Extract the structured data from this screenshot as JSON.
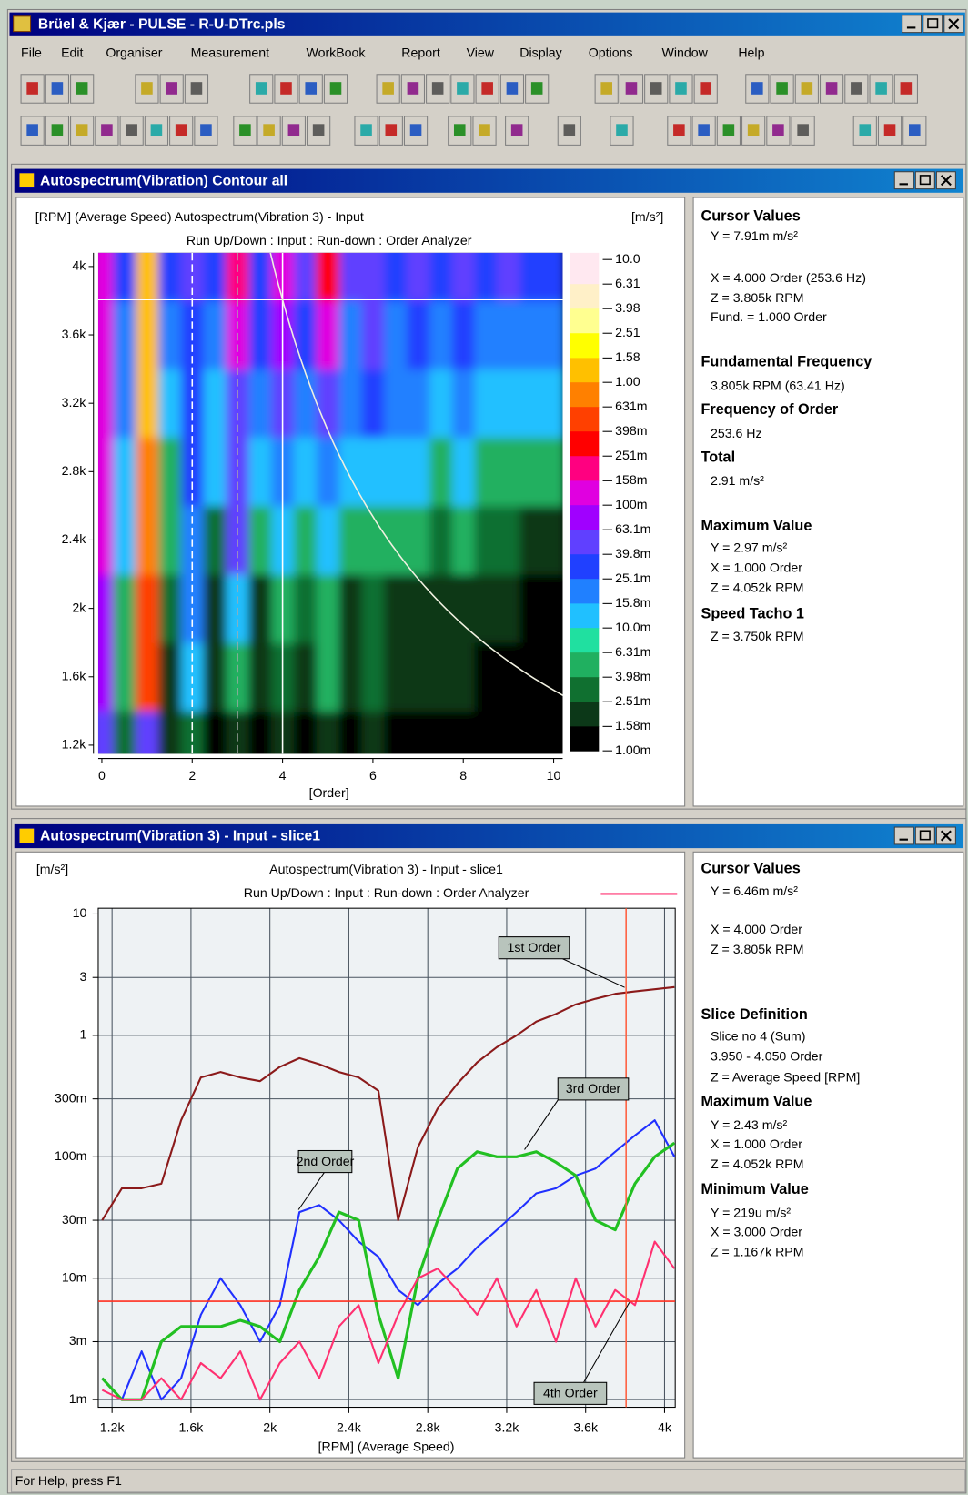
{
  "window": {
    "title": "Brüel & Kjær - PULSE - R-U-DTrc.pls",
    "menu": [
      "File",
      "Edit",
      "Organiser",
      "Measurement",
      "WorkBook",
      "Report",
      "View",
      "Display",
      "Options",
      "Window",
      "Help"
    ],
    "status": "For Help, press F1"
  },
  "windows": [
    {
      "title": "Autospectrum(Vibration) Contour all"
    },
    {
      "title": "Autospectrum(Vibration 3) - Input - slice1"
    }
  ],
  "chart_data": [
    {
      "type": "contour",
      "header": "[RPM] (Average Speed)  Autospectrum(Vibration 3) - Input",
      "unit": "[m/s²]",
      "subtitle": "Run Up/Down : Input : Run-down : Order Analyzer",
      "x_label": "[Order]",
      "xlim": [
        -0.08,
        10.2
      ],
      "ylim": [
        1150,
        4080
      ],
      "xticks": [
        0,
        2,
        4,
        6,
        8,
        10
      ],
      "yticks": [
        {
          "value": 1200,
          "label": "1.2k"
        },
        {
          "value": 1600,
          "label": "1.6k"
        },
        {
          "value": 2000,
          "label": "2k"
        },
        {
          "value": 2400,
          "label": "2.4k"
        },
        {
          "value": 2800,
          "label": "2.8k"
        },
        {
          "value": 3200,
          "label": "3.2k"
        },
        {
          "value": 3600,
          "label": "3.6k"
        },
        {
          "value": 4000,
          "label": "4k"
        }
      ],
      "x": [
        0,
        0.5,
        1,
        1.5,
        2,
        2.5,
        3,
        3.5,
        4,
        4.5,
        5,
        5.5,
        6,
        6.5,
        7,
        7.5,
        8,
        8.5,
        9,
        9.5,
        10
      ],
      "y": [
        1200,
        1600,
        2000,
        2400,
        2800,
        3200,
        3600,
        4000
      ],
      "z": [
        [
          0.06,
          0.003,
          0.06,
          0.002,
          0.003,
          0.001,
          0.002,
          0.001,
          0.002,
          0.001,
          0.002,
          0.001,
          0.002,
          0.001,
          0.001,
          0.001,
          0.001,
          0.001,
          0.001,
          0.001,
          0.001
        ],
        [
          0.08,
          0.004,
          0.5,
          0.002,
          0.01,
          0.002,
          0.004,
          0.002,
          0.003,
          0.002,
          0.004,
          0.002,
          0.003,
          0.002,
          0.002,
          0.002,
          0.002,
          0.001,
          0.001,
          0.001,
          0.001
        ],
        [
          0.08,
          0.006,
          0.6,
          0.003,
          0.02,
          0.002,
          0.01,
          0.002,
          0.005,
          0.003,
          0.005,
          0.002,
          0.003,
          0.002,
          0.002,
          0.002,
          0.002,
          0.002,
          0.002,
          0.001,
          0.001
        ],
        [
          0.1,
          0.01,
          0.7,
          0.005,
          0.025,
          0.003,
          0.04,
          0.005,
          0.01,
          0.005,
          0.01,
          0.004,
          0.006,
          0.004,
          0.005,
          0.003,
          0.004,
          0.003,
          0.003,
          0.002,
          0.002
        ],
        [
          0.1,
          0.01,
          0.8,
          0.005,
          0.03,
          0.01,
          0.04,
          0.01,
          0.02,
          0.01,
          0.02,
          0.01,
          0.015,
          0.01,
          0.01,
          0.005,
          0.01,
          0.005,
          0.005,
          0.005,
          0.004
        ],
        [
          0.12,
          0.02,
          1.0,
          0.01,
          0.03,
          0.01,
          0.06,
          0.02,
          0.04,
          0.02,
          0.05,
          0.02,
          0.03,
          0.02,
          0.02,
          0.01,
          0.02,
          0.01,
          0.01,
          0.01,
          0.01
        ],
        [
          0.15,
          0.02,
          1.2,
          0.02,
          0.03,
          0.02,
          0.1,
          0.03,
          0.08,
          0.03,
          0.1,
          0.02,
          0.04,
          0.02,
          0.03,
          0.02,
          0.03,
          0.02,
          0.02,
          0.02,
          0.02
        ],
        [
          0.15,
          0.03,
          1.5,
          0.03,
          0.05,
          0.03,
          0.2,
          0.03,
          0.1,
          0.04,
          0.3,
          0.04,
          0.05,
          0.03,
          0.04,
          0.03,
          0.05,
          0.03,
          0.04,
          0.03,
          0.03
        ]
      ],
      "clim": [
        0.001,
        10
      ],
      "colorbar_ticks": [
        {
          "value": 10,
          "label": "10.0"
        },
        6.31,
        3.98,
        2.51,
        1.58,
        {
          "value": 1,
          "label": "1.00"
        },
        {
          "value": 0.631,
          "label": "631m"
        },
        {
          "value": 0.398,
          "label": "398m"
        },
        {
          "value": 0.251,
          "label": "251m"
        },
        {
          "value": 0.158,
          "label": "158m"
        },
        {
          "value": 0.1,
          "label": "100m"
        },
        {
          "value": 0.0631,
          "label": "63.1m"
        },
        {
          "value": 0.0398,
          "label": "39.8m"
        },
        {
          "value": 0.0251,
          "label": "25.1m"
        },
        {
          "value": 0.0158,
          "label": "15.8m"
        },
        {
          "value": 0.01,
          "label": "10.0m"
        },
        {
          "value": 0.00631,
          "label": "6.31m"
        },
        {
          "value": 0.00398,
          "label": "3.98m"
        },
        {
          "value": 0.00251,
          "label": "2.51m"
        },
        {
          "value": 0.00158,
          "label": "1.58m"
        },
        {
          "value": 0.001,
          "label": "1.00m"
        }
      ],
      "colors": [
        "#ffe8f0",
        "#fff0c8",
        "#ffff90",
        "#ffff00",
        "#ffc000",
        "#ff8000",
        "#ff4000",
        "#ff0000",
        "#ff0080",
        "#e000e0",
        "#a000ff",
        "#6040ff",
        "#2040ff",
        "#2080ff",
        "#20c0ff",
        "#20e0a0",
        "#20b060",
        "#107030",
        "#0c3818",
        "#000000"
      ],
      "order_lines": [
        2,
        3,
        4
      ],
      "cursor_order": 4,
      "cursor_rpm": 3805
    },
    {
      "type": "line",
      "title": "Autospectrum(Vibration 3) - Input - slice1",
      "subtitle": "Run Up/Down : Input : Run-down : Order Analyzer",
      "unit": "[m/s²]",
      "x_label": "[RPM] (Average Speed)",
      "log_y": true,
      "grid": true,
      "xlim": [
        1130,
        4054
      ],
      "ylim": [
        0.001,
        10
      ],
      "xticks": [
        {
          "value": 1200,
          "label": "1.2k"
        },
        {
          "value": 1600,
          "label": "1.6k"
        },
        {
          "value": 2000,
          "label": "2k"
        },
        {
          "value": 2400,
          "label": "2.4k"
        },
        {
          "value": 2800,
          "label": "2.8k"
        },
        {
          "value": 3200,
          "label": "3.2k"
        },
        {
          "value": 3600,
          "label": "3.6k"
        },
        {
          "value": 4000,
          "label": "4k"
        }
      ],
      "yticks": [
        10,
        3,
        1,
        {
          "value": 0.3,
          "label": "300m"
        },
        {
          "value": 0.1,
          "label": "100m"
        },
        {
          "value": 0.03,
          "label": "30m"
        },
        {
          "value": 0.01,
          "label": "10m"
        },
        {
          "value": 0.003,
          "label": "3m"
        },
        {
          "value": 0.001,
          "label": "1m"
        }
      ],
      "x": [
        1150,
        1250,
        1350,
        1450,
        1550,
        1650,
        1750,
        1850,
        1950,
        2050,
        2150,
        2250,
        2350,
        2450,
        2550,
        2650,
        2750,
        2850,
        2950,
        3050,
        3150,
        3250,
        3350,
        3450,
        3550,
        3650,
        3750,
        3850,
        3950,
        4050
      ],
      "series": [
        {
          "name": "1st Order",
          "color": "#8b1a1a",
          "values": [
            0.03,
            0.055,
            0.055,
            0.06,
            0.2,
            0.45,
            0.5,
            0.45,
            0.42,
            0.55,
            0.65,
            0.58,
            0.5,
            0.45,
            0.35,
            0.03,
            0.12,
            0.25,
            0.4,
            0.6,
            0.8,
            1.0,
            1.3,
            1.5,
            1.8,
            2.0,
            2.2,
            2.3,
            2.4,
            2.5
          ]
        },
        {
          "name": "2nd Order",
          "color": "#2030ff",
          "values": [
            0.0015,
            0.001,
            0.0025,
            0.001,
            0.0015,
            0.005,
            0.01,
            0.006,
            0.003,
            0.006,
            0.035,
            0.04,
            0.03,
            0.02,
            0.015,
            0.008,
            0.006,
            0.009,
            0.012,
            0.018,
            0.025,
            0.035,
            0.05,
            0.055,
            0.07,
            0.08,
            0.11,
            0.15,
            0.2,
            0.1
          ]
        },
        {
          "name": "3rd Order",
          "color": "#22c022",
          "values": [
            0.0015,
            0.001,
            0.001,
            0.003,
            0.004,
            0.004,
            0.004,
            0.0045,
            0.004,
            0.003,
            0.008,
            0.015,
            0.035,
            0.03,
            0.005,
            0.0015,
            0.01,
            0.03,
            0.08,
            0.11,
            0.1,
            0.1,
            0.11,
            0.09,
            0.07,
            0.03,
            0.025,
            0.06,
            0.1,
            0.13
          ]
        },
        {
          "name": "4th Order",
          "color": "#ff3070",
          "values": [
            0.0012,
            0.001,
            0.001,
            0.0015,
            0.001,
            0.002,
            0.0015,
            0.0025,
            0.001,
            0.002,
            0.003,
            0.0015,
            0.004,
            0.006,
            0.002,
            0.005,
            0.01,
            0.012,
            0.008,
            0.005,
            0.01,
            0.004,
            0.008,
            0.003,
            0.01,
            0.004,
            0.008,
            0.006,
            0.02,
            0.012
          ]
        }
      ],
      "cursor_rpm": 3805,
      "cursor_y": 0.00646,
      "legend_color": "#ff3070"
    }
  ],
  "panels": [
    {
      "groups": [
        {
          "heading": "Cursor Values",
          "lines": [
            "Y = 7.91m m/s²",
            "X = 4.000 Order  (253.6 Hz)",
            "Z = 3.805k RPM",
            "Fund. = 1.000 Order"
          ]
        },
        {
          "heading": "Fundamental Frequency",
          "lines": [
            "3.805k RPM  (63.41 Hz)"
          ]
        },
        {
          "heading": "Frequency of Order",
          "lines": [
            "253.6 Hz"
          ]
        },
        {
          "heading": "Total",
          "lines": [
            "2.91 m/s²"
          ]
        },
        {
          "heading": "Maximum Value",
          "lines": [
            "Y = 2.97 m/s²",
            "X = 1.000 Order",
            "Z = 4.052k RPM"
          ]
        },
        {
          "heading": "Speed Tacho 1",
          "lines": [
            "Z = 3.750k RPM"
          ]
        }
      ]
    },
    {
      "groups": [
        {
          "heading": "Cursor Values",
          "lines": [
            "Y = 6.46m m/s²",
            "X = 4.000 Order",
            "Z = 3.805k RPM"
          ]
        },
        {
          "heading": "Slice Definition",
          "lines": [
            "Slice no 4 (Sum)",
            "3.950 - 4.050 Order",
            "Z = Average Speed [RPM]"
          ]
        },
        {
          "heading": "Maximum Value",
          "lines": [
            "Y = 2.43 m/s²",
            "X = 1.000 Order",
            "Z = 4.052k RPM"
          ]
        },
        {
          "heading": "Minimum Value",
          "lines": [
            "Y = 219u m/s²",
            "X = 3.000 Order",
            "Z = 1.167k RPM"
          ]
        }
      ]
    }
  ]
}
